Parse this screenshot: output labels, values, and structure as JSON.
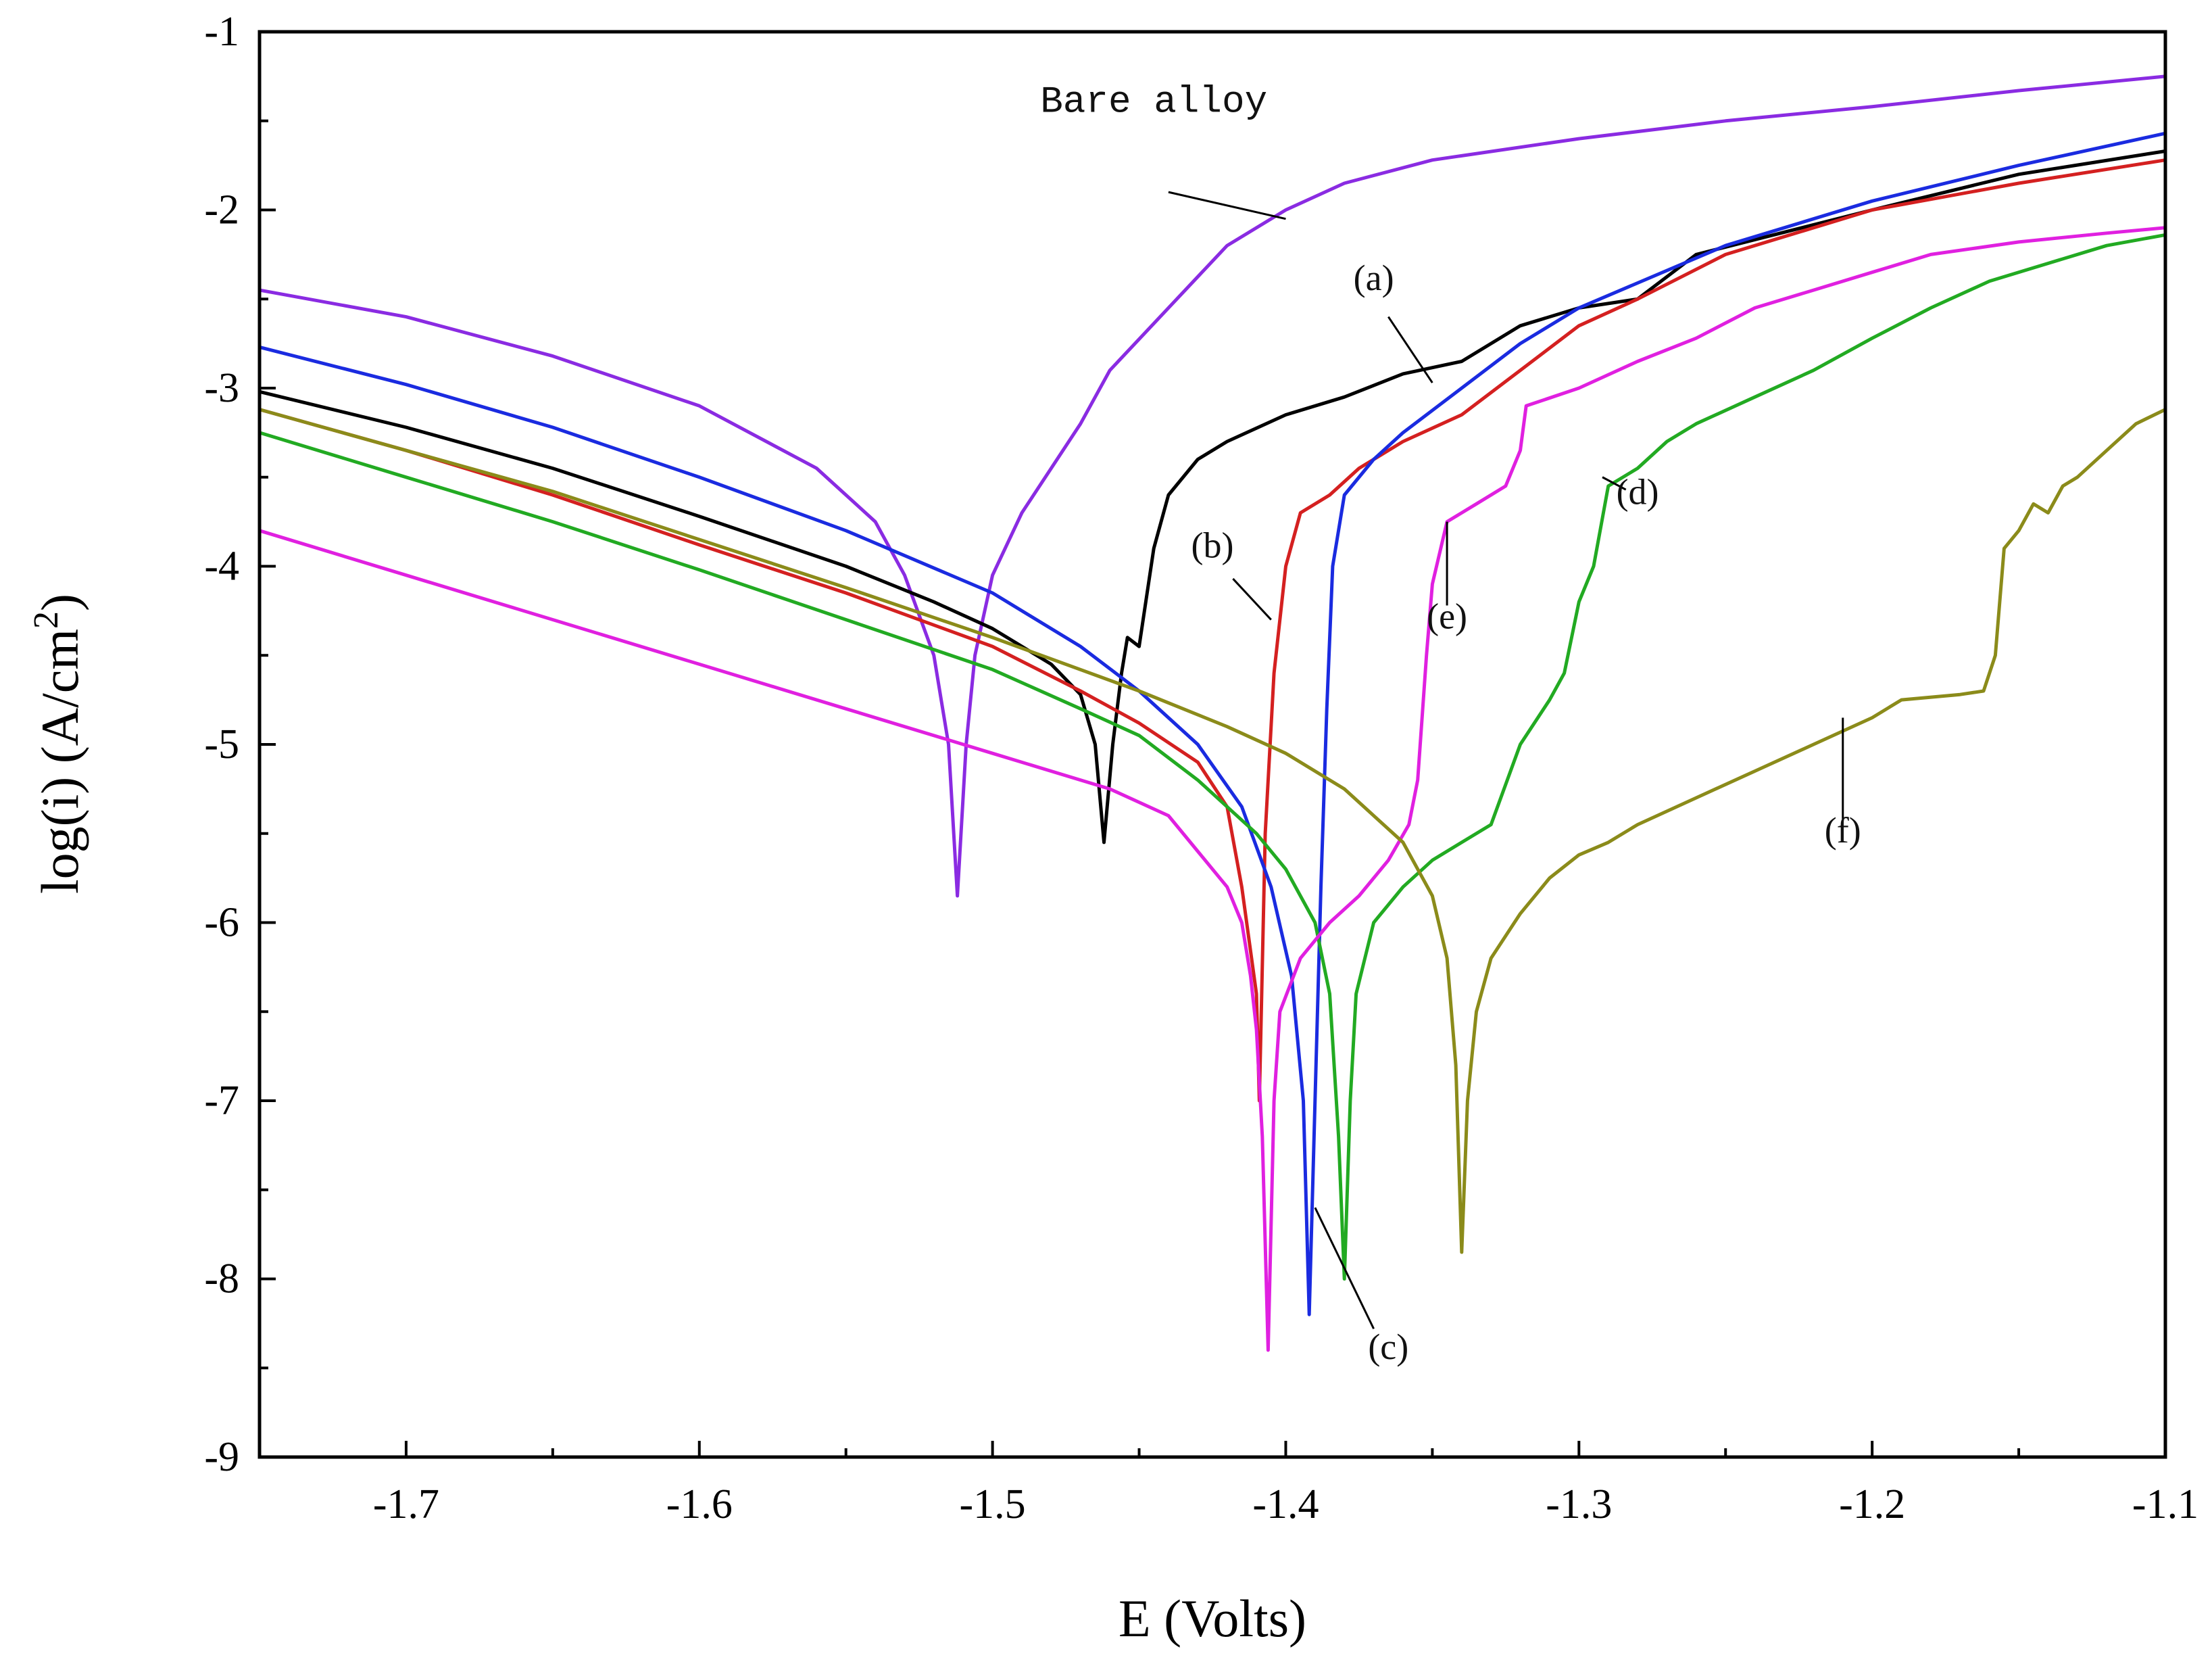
{
  "chart_data": {
    "type": "line",
    "title": "",
    "xlabel": "E (Volts)",
    "ylabel": "log(i) (A/cm",
    "ylabel_sup": "2",
    "ylabel_close": ")",
    "xlim": [
      -1.75,
      -1.1
    ],
    "ylim": [
      -9,
      -1
    ],
    "x_ticks": [
      -1.7,
      -1.6,
      -1.5,
      -1.4,
      -1.3,
      -1.2,
      -1.1
    ],
    "x_tick_labels": [
      "-1.7",
      "-1.6",
      "-1.5",
      "-1.4",
      "-1.3",
      "-1.2",
      "-1.1"
    ],
    "y_ticks": [
      -9,
      -8,
      -7,
      -6,
      -5,
      -4,
      -3,
      -2,
      -1
    ],
    "y_tick_labels": [
      "-9",
      "-8",
      "-7",
      "-6",
      "-5",
      "-4",
      "-3",
      "-2",
      "-1"
    ],
    "grid": false,
    "series": [
      {
        "name": "Bare alloy",
        "color": "#8a2be2",
        "points": [
          [
            -1.75,
            -2.45
          ],
          [
            -1.7,
            -2.6
          ],
          [
            -1.65,
            -2.82
          ],
          [
            -1.6,
            -3.1
          ],
          [
            -1.56,
            -3.45
          ],
          [
            -1.54,
            -3.75
          ],
          [
            -1.53,
            -4.05
          ],
          [
            -1.52,
            -4.5
          ],
          [
            -1.515,
            -5.0
          ],
          [
            -1.512,
            -5.85
          ],
          [
            -1.509,
            -5.0
          ],
          [
            -1.506,
            -4.5
          ],
          [
            -1.5,
            -4.05
          ],
          [
            -1.49,
            -3.7
          ],
          [
            -1.48,
            -3.45
          ],
          [
            -1.47,
            -3.2
          ],
          [
            -1.46,
            -2.9
          ],
          [
            -1.44,
            -2.55
          ],
          [
            -1.42,
            -2.2
          ],
          [
            -1.4,
            -2.0
          ],
          [
            -1.38,
            -1.85
          ],
          [
            -1.35,
            -1.72
          ],
          [
            -1.3,
            -1.6
          ],
          [
            -1.25,
            -1.5
          ],
          [
            -1.2,
            -1.42
          ],
          [
            -1.15,
            -1.33
          ],
          [
            -1.1,
            -1.25
          ]
        ]
      },
      {
        "name": "(a)",
        "color": "#000000",
        "points": [
          [
            -1.75,
            -3.02
          ],
          [
            -1.7,
            -3.22
          ],
          [
            -1.65,
            -3.45
          ],
          [
            -1.6,
            -3.72
          ],
          [
            -1.55,
            -4.0
          ],
          [
            -1.52,
            -4.2
          ],
          [
            -1.5,
            -4.35
          ],
          [
            -1.48,
            -4.55
          ],
          [
            -1.47,
            -4.72
          ],
          [
            -1.465,
            -5.0
          ],
          [
            -1.462,
            -5.55
          ],
          [
            -1.459,
            -5.0
          ],
          [
            -1.456,
            -4.6
          ],
          [
            -1.454,
            -4.4
          ],
          [
            -1.45,
            -4.45
          ],
          [
            -1.445,
            -3.9
          ],
          [
            -1.44,
            -3.6
          ],
          [
            -1.43,
            -3.4
          ],
          [
            -1.42,
            -3.3
          ],
          [
            -1.4,
            -3.15
          ],
          [
            -1.38,
            -3.05
          ],
          [
            -1.36,
            -2.92
          ],
          [
            -1.34,
            -2.85
          ],
          [
            -1.32,
            -2.65
          ],
          [
            -1.3,
            -2.55
          ],
          [
            -1.28,
            -2.5
          ],
          [
            -1.26,
            -2.25
          ],
          [
            -1.2,
            -2.0
          ],
          [
            -1.15,
            -1.8
          ],
          [
            -1.1,
            -1.67
          ]
        ]
      },
      {
        "name": "(b)",
        "color": "#d42020",
        "points": [
          [
            -1.75,
            -3.12
          ],
          [
            -1.7,
            -3.35
          ],
          [
            -1.65,
            -3.6
          ],
          [
            -1.6,
            -3.88
          ],
          [
            -1.55,
            -4.15
          ],
          [
            -1.5,
            -4.45
          ],
          [
            -1.47,
            -4.7
          ],
          [
            -1.45,
            -4.88
          ],
          [
            -1.43,
            -5.1
          ],
          [
            -1.42,
            -5.35
          ],
          [
            -1.415,
            -5.8
          ],
          [
            -1.41,
            -6.4
          ],
          [
            -1.409,
            -7.0
          ],
          [
            -1.407,
            -5.5
          ],
          [
            -1.404,
            -4.6
          ],
          [
            -1.4,
            -4.0
          ],
          [
            -1.395,
            -3.7
          ],
          [
            -1.385,
            -3.6
          ],
          [
            -1.375,
            -3.45
          ],
          [
            -1.36,
            -3.3
          ],
          [
            -1.34,
            -3.15
          ],
          [
            -1.32,
            -2.9
          ],
          [
            -1.3,
            -2.65
          ],
          [
            -1.28,
            -2.5
          ],
          [
            -1.25,
            -2.25
          ],
          [
            -1.2,
            -2.0
          ],
          [
            -1.15,
            -1.85
          ],
          [
            -1.1,
            -1.72
          ]
        ]
      },
      {
        "name": "(c)",
        "color": "#1a2be0",
        "points": [
          [
            -1.75,
            -2.77
          ],
          [
            -1.7,
            -2.98
          ],
          [
            -1.65,
            -3.22
          ],
          [
            -1.6,
            -3.5
          ],
          [
            -1.55,
            -3.8
          ],
          [
            -1.5,
            -4.15
          ],
          [
            -1.47,
            -4.45
          ],
          [
            -1.45,
            -4.7
          ],
          [
            -1.43,
            -5.0
          ],
          [
            -1.415,
            -5.35
          ],
          [
            -1.405,
            -5.8
          ],
          [
            -1.398,
            -6.3
          ],
          [
            -1.394,
            -7.0
          ],
          [
            -1.392,
            -8.2
          ],
          [
            -1.39,
            -7.0
          ],
          [
            -1.388,
            -5.8
          ],
          [
            -1.386,
            -4.8
          ],
          [
            -1.384,
            -4.0
          ],
          [
            -1.38,
            -3.6
          ],
          [
            -1.37,
            -3.4
          ],
          [
            -1.36,
            -3.25
          ],
          [
            -1.34,
            -3.0
          ],
          [
            -1.32,
            -2.75
          ],
          [
            -1.3,
            -2.55
          ],
          [
            -1.25,
            -2.2
          ],
          [
            -1.2,
            -1.95
          ],
          [
            -1.15,
            -1.75
          ],
          [
            -1.1,
            -1.57
          ]
        ]
      },
      {
        "name": "(d)",
        "color": "#22aa22",
        "points": [
          [
            -1.75,
            -3.25
          ],
          [
            -1.7,
            -3.5
          ],
          [
            -1.65,
            -3.75
          ],
          [
            -1.6,
            -4.02
          ],
          [
            -1.55,
            -4.3
          ],
          [
            -1.5,
            -4.58
          ],
          [
            -1.47,
            -4.8
          ],
          [
            -1.45,
            -4.95
          ],
          [
            -1.43,
            -5.2
          ],
          [
            -1.41,
            -5.5
          ],
          [
            -1.4,
            -5.7
          ],
          [
            -1.39,
            -6.0
          ],
          [
            -1.385,
            -6.4
          ],
          [
            -1.382,
            -7.2
          ],
          [
            -1.38,
            -8.0
          ],
          [
            -1.378,
            -7.0
          ],
          [
            -1.376,
            -6.4
          ],
          [
            -1.37,
            -6.0
          ],
          [
            -1.36,
            -5.8
          ],
          [
            -1.35,
            -5.65
          ],
          [
            -1.34,
            -5.55
          ],
          [
            -1.33,
            -5.45
          ],
          [
            -1.32,
            -5.0
          ],
          [
            -1.31,
            -4.75
          ],
          [
            -1.305,
            -4.6
          ],
          [
            -1.3,
            -4.2
          ],
          [
            -1.295,
            -4.0
          ],
          [
            -1.29,
            -3.55
          ],
          [
            -1.28,
            -3.45
          ],
          [
            -1.27,
            -3.3
          ],
          [
            -1.26,
            -3.2
          ],
          [
            -1.24,
            -3.05
          ],
          [
            -1.22,
            -2.9
          ],
          [
            -1.2,
            -2.72
          ],
          [
            -1.18,
            -2.55
          ],
          [
            -1.16,
            -2.4
          ],
          [
            -1.14,
            -2.3
          ],
          [
            -1.12,
            -2.2
          ],
          [
            -1.1,
            -2.14
          ]
        ]
      },
      {
        "name": "(e)",
        "color": "#e020e0",
        "points": [
          [
            -1.75,
            -3.8
          ],
          [
            -1.7,
            -4.05
          ],
          [
            -1.65,
            -4.3
          ],
          [
            -1.6,
            -4.55
          ],
          [
            -1.55,
            -4.8
          ],
          [
            -1.5,
            -5.05
          ],
          [
            -1.46,
            -5.25
          ],
          [
            -1.44,
            -5.4
          ],
          [
            -1.43,
            -5.6
          ],
          [
            -1.42,
            -5.8
          ],
          [
            -1.415,
            -6.0
          ],
          [
            -1.412,
            -6.3
          ],
          [
            -1.41,
            -6.6
          ],
          [
            -1.408,
            -7.2
          ],
          [
            -1.406,
            -8.4
          ],
          [
            -1.404,
            -7.0
          ],
          [
            -1.402,
            -6.5
          ],
          [
            -1.395,
            -6.2
          ],
          [
            -1.385,
            -6.0
          ],
          [
            -1.375,
            -5.85
          ],
          [
            -1.365,
            -5.65
          ],
          [
            -1.358,
            -5.45
          ],
          [
            -1.355,
            -5.2
          ],
          [
            -1.352,
            -4.5
          ],
          [
            -1.35,
            -4.1
          ],
          [
            -1.345,
            -3.75
          ],
          [
            -1.335,
            -3.65
          ],
          [
            -1.325,
            -3.55
          ],
          [
            -1.32,
            -3.35
          ],
          [
            -1.318,
            -3.1
          ],
          [
            -1.3,
            -3.0
          ],
          [
            -1.28,
            -2.85
          ],
          [
            -1.26,
            -2.72
          ],
          [
            -1.24,
            -2.55
          ],
          [
            -1.22,
            -2.45
          ],
          [
            -1.2,
            -2.35
          ],
          [
            -1.18,
            -2.25
          ],
          [
            -1.15,
            -2.18
          ],
          [
            -1.12,
            -2.13
          ],
          [
            -1.1,
            -2.1
          ]
        ]
      },
      {
        "name": "(f)",
        "color": "#8b8b1a",
        "points": [
          [
            -1.75,
            -3.12
          ],
          [
            -1.7,
            -3.35
          ],
          [
            -1.65,
            -3.58
          ],
          [
            -1.6,
            -3.85
          ],
          [
            -1.55,
            -4.12
          ],
          [
            -1.5,
            -4.4
          ],
          [
            -1.45,
            -4.7
          ],
          [
            -1.42,
            -4.9
          ],
          [
            -1.4,
            -5.05
          ],
          [
            -1.38,
            -5.25
          ],
          [
            -1.36,
            -5.55
          ],
          [
            -1.35,
            -5.85
          ],
          [
            -1.345,
            -6.2
          ],
          [
            -1.342,
            -6.8
          ],
          [
            -1.34,
            -7.85
          ],
          [
            -1.338,
            -7.0
          ],
          [
            -1.335,
            -6.5
          ],
          [
            -1.33,
            -6.2
          ],
          [
            -1.32,
            -5.95
          ],
          [
            -1.31,
            -5.75
          ],
          [
            -1.3,
            -5.62
          ],
          [
            -1.29,
            -5.55
          ],
          [
            -1.28,
            -5.45
          ],
          [
            -1.26,
            -5.3
          ],
          [
            -1.24,
            -5.15
          ],
          [
            -1.22,
            -5.0
          ],
          [
            -1.2,
            -4.85
          ],
          [
            -1.19,
            -4.75
          ],
          [
            -1.17,
            -4.72
          ],
          [
            -1.162,
            -4.7
          ],
          [
            -1.158,
            -4.5
          ],
          [
            -1.155,
            -3.9
          ],
          [
            -1.15,
            -3.8
          ],
          [
            -1.145,
            -3.65
          ],
          [
            -1.14,
            -3.7
          ],
          [
            -1.135,
            -3.55
          ],
          [
            -1.13,
            -3.5
          ],
          [
            -1.12,
            -3.35
          ],
          [
            -1.11,
            -3.2
          ],
          [
            -1.1,
            -3.12
          ]
        ]
      }
    ],
    "annotations": [
      {
        "text": "Bare alloy",
        "mono": true,
        "at": [
          -1.445,
          -1.45
        ],
        "to": [
          -1.4,
          -2.05
        ],
        "from": [
          -1.44,
          -1.9
        ]
      },
      {
        "text": "(a)",
        "at": [
          -1.37,
          -2.45
        ],
        "to": [
          -1.35,
          -2.97
        ],
        "from": [
          -1.365,
          -2.6
        ]
      },
      {
        "text": "(b)",
        "at": [
          -1.425,
          -3.95
        ],
        "to": [
          -1.405,
          -4.3
        ],
        "from": [
          -1.418,
          -4.07
        ]
      },
      {
        "text": "(c)",
        "at": [
          -1.365,
          -8.45
        ],
        "to": [
          -1.39,
          -7.6
        ],
        "from": [
          -1.37,
          -8.28
        ]
      },
      {
        "text": "(d)",
        "at": [
          -1.28,
          -3.65
        ],
        "to": [
          -1.292,
          -3.5
        ],
        "from": [
          -1.284,
          -3.57
        ]
      },
      {
        "text": "(e)",
        "at": [
          -1.345,
          -4.35
        ],
        "to": [
          -1.345,
          -3.75
        ],
        "from": [
          -1.345,
          -4.22
        ]
      },
      {
        "text": "(f)",
        "at": [
          -1.21,
          -5.55
        ],
        "to": [
          -1.21,
          -4.85
        ],
        "from": [
          -1.21,
          -5.42
        ]
      }
    ]
  }
}
